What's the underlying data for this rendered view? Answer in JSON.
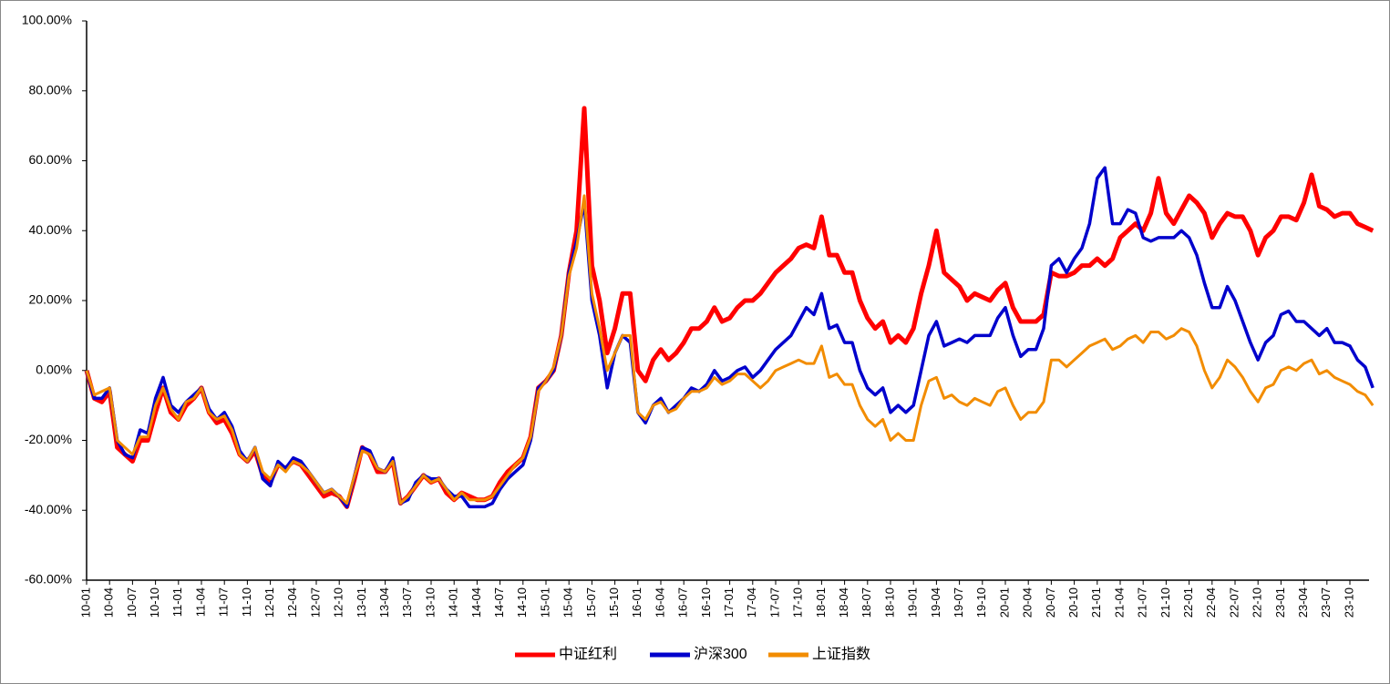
{
  "chart_data": {
    "type": "line",
    "categories": [
      "10-01",
      null,
      null,
      "10-04",
      null,
      null,
      "10-07",
      null,
      null,
      "10-10",
      null,
      null,
      "11-01",
      null,
      null,
      "11-04",
      null,
      null,
      "11-07",
      null,
      null,
      "11-10",
      null,
      null,
      "12-01",
      null,
      null,
      "12-04",
      null,
      null,
      "12-07",
      null,
      null,
      "12-10",
      null,
      null,
      "13-01",
      null,
      null,
      "13-04",
      null,
      null,
      "13-07",
      null,
      null,
      "13-10",
      null,
      null,
      "14-01",
      null,
      null,
      "14-04",
      null,
      null,
      "14-07",
      null,
      null,
      "14-10",
      null,
      null,
      "15-01",
      null,
      null,
      "15-04",
      null,
      null,
      "15-07",
      null,
      null,
      "15-10",
      null,
      null,
      "16-01",
      null,
      null,
      "16-04",
      null,
      null,
      "16-07",
      null,
      null,
      "16-10",
      null,
      null,
      "17-01",
      null,
      null,
      "17-04",
      null,
      null,
      "17-07",
      null,
      null,
      "17-10",
      null,
      null,
      "18-01",
      null,
      null,
      "18-04",
      null,
      null,
      "18-07",
      null,
      null,
      "18-10",
      null,
      null,
      "19-01",
      null,
      null,
      "19-04",
      null,
      null,
      "19-07",
      null,
      null,
      "19-10",
      null,
      null,
      "20-01",
      null,
      null,
      "20-04",
      null,
      null,
      "20-07",
      null,
      null,
      "20-10",
      null,
      null,
      "21-01",
      null,
      null,
      "21-04",
      null,
      null,
      "21-07",
      null,
      null,
      "21-10",
      null,
      null,
      "22-01",
      null,
      null,
      "22-04",
      null,
      null,
      "22-07",
      null,
      null,
      "22-10",
      null,
      null,
      "23-01",
      null,
      null,
      "23-04",
      null,
      null,
      "23-07",
      null,
      null,
      "23-10",
      null,
      null,
      null
    ],
    "series": [
      {
        "name": "中证红利",
        "color": "#ff0000",
        "values": [
          0,
          -8,
          -9,
          -6,
          -22,
          -24,
          -26,
          -20,
          -20,
          -12,
          -5,
          -12,
          -14,
          -10,
          -8,
          -5,
          -12,
          -15,
          -14,
          -18,
          -24,
          -26,
          -23,
          -30,
          -32,
          -27,
          -28,
          -26,
          -27,
          -30,
          -33,
          -36,
          -35,
          -36,
          -39,
          -31,
          -22,
          -24,
          -29,
          -29,
          -26,
          -38,
          -36,
          -33,
          -30,
          -32,
          -31,
          -35,
          -37,
          -35,
          -36,
          -37,
          -37,
          -36,
          -32,
          -29,
          -27,
          -25,
          -19,
          -5,
          -3,
          0,
          10,
          28,
          40,
          75,
          30,
          20,
          5,
          12,
          22,
          22,
          0,
          -3,
          3,
          6,
          3,
          5,
          8,
          12,
          12,
          14,
          18,
          14,
          15,
          18,
          20,
          20,
          22,
          25,
          28,
          30,
          32,
          35,
          36,
          35,
          44,
          33,
          33,
          28,
          28,
          20,
          15,
          12,
          14,
          8,
          10,
          8,
          12,
          22,
          30,
          40,
          28,
          26,
          24,
          20,
          22,
          21,
          20,
          23,
          25,
          18,
          14,
          14,
          14,
          16,
          28,
          27,
          27,
          28,
          30,
          30,
          32,
          30,
          32,
          38,
          40,
          42,
          40,
          45,
          55,
          45,
          42,
          46,
          50,
          48,
          45,
          38,
          42,
          45,
          44,
          44,
          40,
          33,
          38,
          40,
          44,
          44,
          43,
          48,
          56,
          47,
          46,
          44,
          45,
          45,
          42,
          41,
          40
        ]
      },
      {
        "name": "沪深300",
        "color": "#0000cc",
        "values": [
          0,
          -8,
          -8,
          -5,
          -20,
          -24,
          -25,
          -17,
          -18,
          -8,
          -2,
          -10,
          -12,
          -9,
          -7,
          -5,
          -11,
          -14,
          -12,
          -16,
          -23,
          -26,
          -22,
          -31,
          -33,
          -26,
          -28,
          -25,
          -26,
          -29,
          -32,
          -35,
          -34,
          -36,
          -39,
          -30,
          -22,
          -23,
          -28,
          -29,
          -25,
          -38,
          -37,
          -32,
          -30,
          -31,
          -31,
          -34,
          -36,
          -36,
          -39,
          -39,
          -39,
          -38,
          -34,
          -31,
          -29,
          -27,
          -20,
          -5,
          -3,
          0,
          10,
          28,
          37,
          48,
          20,
          10,
          -5,
          5,
          10,
          8,
          -12,
          -15,
          -10,
          -8,
          -12,
          -10,
          -8,
          -5,
          -6,
          -4,
          0,
          -3,
          -2,
          0,
          1,
          -2,
          0,
          3,
          6,
          8,
          10,
          14,
          18,
          16,
          22,
          12,
          13,
          8,
          8,
          0,
          -5,
          -7,
          -5,
          -12,
          -10,
          -12,
          -10,
          0,
          10,
          14,
          7,
          8,
          9,
          8,
          10,
          10,
          10,
          15,
          18,
          10,
          4,
          6,
          6,
          12,
          30,
          32,
          28,
          32,
          35,
          42,
          55,
          58,
          42,
          42,
          46,
          45,
          38,
          37,
          38,
          38,
          38,
          40,
          38,
          33,
          25,
          18,
          18,
          24,
          20,
          14,
          8,
          3,
          8,
          10,
          16,
          17,
          14,
          14,
          12,
          10,
          12,
          8,
          8,
          7,
          3,
          1,
          -5
        ]
      },
      {
        "name": "上证指数",
        "color": "#f28c00",
        "values": [
          0,
          -7,
          -6,
          -5,
          -20,
          -22,
          -24,
          -19,
          -19,
          -10,
          -5,
          -11,
          -14,
          -9,
          -8,
          -5,
          -12,
          -14,
          -13,
          -17,
          -24,
          -26,
          -22,
          -29,
          -31,
          -27,
          -29,
          -26,
          -27,
          -29,
          -32,
          -35,
          -34,
          -36,
          -38,
          -30,
          -23,
          -24,
          -28,
          -29,
          -26,
          -38,
          -36,
          -33,
          -30,
          -32,
          -31,
          -34,
          -37,
          -35,
          -37,
          -37,
          -37,
          -36,
          -33,
          -30,
          -27,
          -25,
          -19,
          -6,
          -3,
          1,
          10,
          27,
          35,
          50,
          22,
          12,
          0,
          5,
          10,
          10,
          -12,
          -14,
          -10,
          -9,
          -12,
          -11,
          -8,
          -6,
          -6,
          -5,
          -2,
          -4,
          -3,
          -1,
          -1,
          -3,
          -5,
          -3,
          0,
          1,
          2,
          3,
          2,
          2,
          7,
          -2,
          -1,
          -4,
          -4,
          -10,
          -14,
          -16,
          -14,
          -20,
          -18,
          -20,
          -20,
          -10,
          -3,
          -2,
          -8,
          -7,
          -9,
          -10,
          -8,
          -9,
          -10,
          -6,
          -5,
          -10,
          -14,
          -12,
          -12,
          -9,
          3,
          3,
          1,
          3,
          5,
          7,
          8,
          9,
          6,
          7,
          9,
          10,
          8,
          11,
          11,
          9,
          10,
          12,
          11,
          7,
          0,
          -5,
          -2,
          3,
          1,
          -2,
          -6,
          -9,
          -5,
          -4,
          0,
          1,
          0,
          2,
          3,
          -1,
          0,
          -2,
          -3,
          -4,
          -6,
          -7,
          -10
        ]
      }
    ],
    "ylim": [
      -60,
      100
    ],
    "yticks": [
      {
        "value": -60,
        "label": "-60.00%"
      },
      {
        "value": -40,
        "label": "-40.00%"
      },
      {
        "value": -20,
        "label": "-20.00%"
      },
      {
        "value": 0,
        "label": "0.00%"
      },
      {
        "value": 20,
        "label": "20.00%"
      },
      {
        "value": 40,
        "label": "40.00%"
      },
      {
        "value": 60,
        "label": "60.00%"
      },
      {
        "value": 80,
        "label": "80.00%"
      },
      {
        "value": 100,
        "label": "100.00%"
      }
    ],
    "legend": "bottom"
  }
}
